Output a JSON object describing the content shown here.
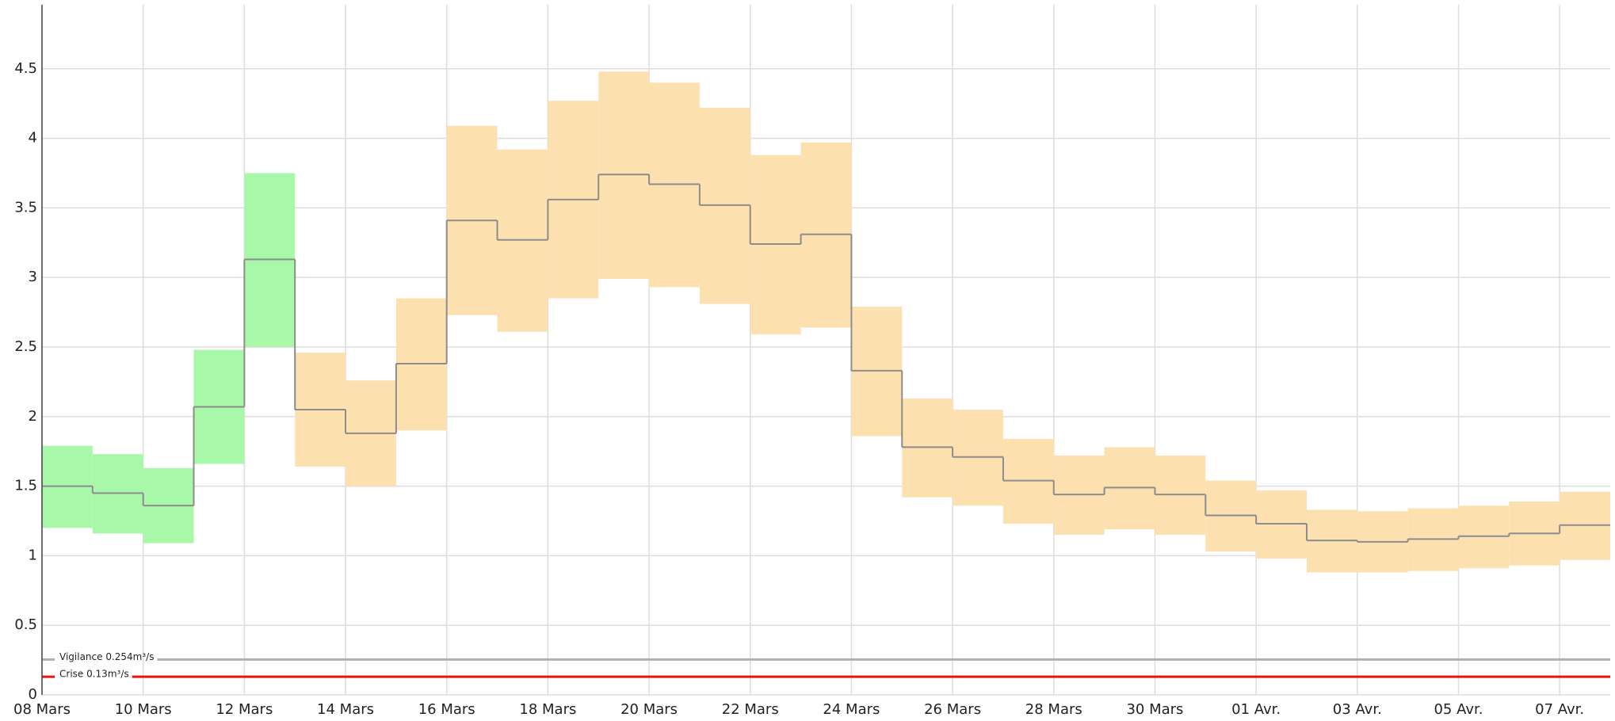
{
  "chart_data": {
    "type": "step",
    "bins": [
      0,
      1,
      2,
      3,
      4,
      5,
      6,
      7,
      8,
      9,
      10,
      11,
      12,
      13,
      14,
      15,
      16,
      17,
      18,
      19,
      20,
      21,
      22,
      23,
      24,
      25,
      26,
      27,
      28,
      29,
      30,
      31
    ],
    "median": [
      1.5,
      1.45,
      1.36,
      2.07,
      3.13,
      2.05,
      1.88,
      2.38,
      3.41,
      3.27,
      3.56,
      3.74,
      3.67,
      3.52,
      3.24,
      3.31,
      2.33,
      1.78,
      1.71,
      1.54,
      1.44,
      1.49,
      1.44,
      1.29,
      1.23,
      1.11,
      1.1,
      1.12,
      1.14,
      1.16,
      1.22
    ],
    "low": [
      1.2,
      1.16,
      1.09,
      1.66,
      2.5,
      1.64,
      1.5,
      1.9,
      2.73,
      2.61,
      2.85,
      2.99,
      2.93,
      2.81,
      2.59,
      2.64,
      1.86,
      1.42,
      1.36,
      1.23,
      1.15,
      1.19,
      1.15,
      1.03,
      0.98,
      0.88,
      0.88,
      0.89,
      0.91,
      0.93,
      0.97
    ],
    "high": [
      1.79,
      1.73,
      1.63,
      2.48,
      3.75,
      2.46,
      2.26,
      2.85,
      4.09,
      3.92,
      4.27,
      4.48,
      4.4,
      4.22,
      3.88,
      3.97,
      2.79,
      2.13,
      2.05,
      1.84,
      1.72,
      1.78,
      1.72,
      1.54,
      1.47,
      1.33,
      1.32,
      1.34,
      1.36,
      1.39,
      1.46
    ],
    "band_colors": [
      "#a9f7a9",
      "#a9f7a9",
      "#a9f7a9",
      "#a9f7a9",
      "#a9f7a9",
      "#fde0b0",
      "#fde0b0",
      "#fde0b0",
      "#fde0b0",
      "#fde0b0",
      "#fde0b0",
      "#fde0b0",
      "#fde0b0",
      "#fde0b0",
      "#fde0b0",
      "#fde0b0",
      "#fde0b0",
      "#fde0b0",
      "#fde0b0",
      "#fde0b0",
      "#fde0b0",
      "#fde0b0",
      "#fde0b0",
      "#fde0b0",
      "#fde0b0",
      "#fde0b0",
      "#fde0b0",
      "#fde0b0",
      "#fde0b0",
      "#fde0b0",
      "#fde0b0"
    ],
    "line_color": "#8c8c8c",
    "thresholds": [
      {
        "label": "Vigilance 0.254m³/s",
        "value": 0.254,
        "color": "#b0b0b0"
      },
      {
        "label": "Crise 0.13m³/s",
        "value": 0.13,
        "color": "#ee1111"
      }
    ],
    "xlim": [
      0,
      31
    ],
    "xticks": [
      {
        "value": 0,
        "label": "08 Mars"
      },
      {
        "value": 2,
        "label": "10 Mars"
      },
      {
        "value": 4,
        "label": "12 Mars"
      },
      {
        "value": 6,
        "label": "14 Mars"
      },
      {
        "value": 8,
        "label": "16 Mars"
      },
      {
        "value": 10,
        "label": "18 Mars"
      },
      {
        "value": 12,
        "label": "20 Mars"
      },
      {
        "value": 14,
        "label": "22 Mars"
      },
      {
        "value": 16,
        "label": "24 Mars"
      },
      {
        "value": 18,
        "label": "26 Mars"
      },
      {
        "value": 20,
        "label": "28 Mars"
      },
      {
        "value": 22,
        "label": "30 Mars"
      },
      {
        "value": 24,
        "label": "01 Avr."
      },
      {
        "value": 26,
        "label": "03 Avr."
      },
      {
        "value": 28,
        "label": "05 Avr."
      },
      {
        "value": 30,
        "label": "07 Avr."
      }
    ],
    "ylim": [
      0,
      4.96
    ],
    "yticks": [
      0,
      0.5,
      1,
      1.5,
      2,
      2.5,
      3,
      3.5,
      4,
      4.5
    ],
    "grid": true
  }
}
